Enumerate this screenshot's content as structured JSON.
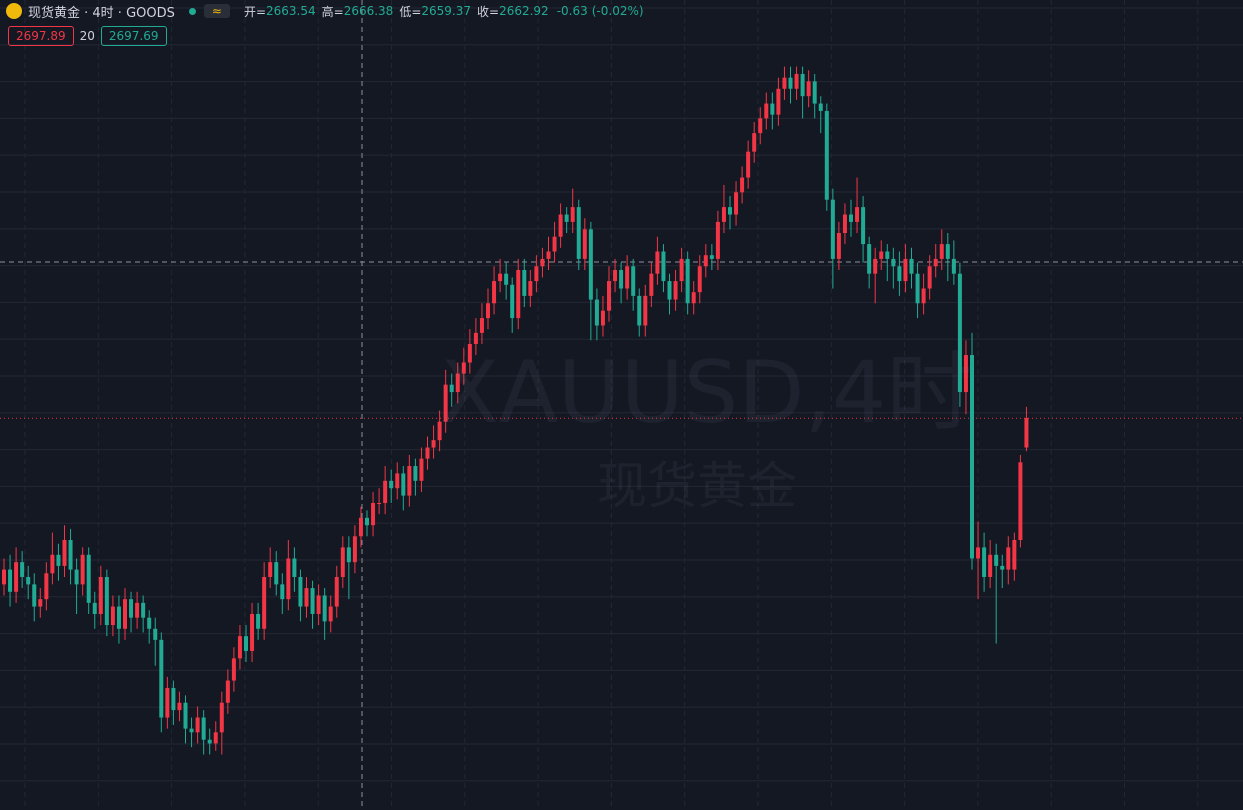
{
  "header": {
    "title": "现货黄金 · 4时 · GOODS",
    "badge": "≈",
    "ohlc_labels": {
      "open": "开=",
      "high": "高=",
      "low": "低=",
      "close": "收="
    },
    "ohlc": {
      "open": 2663.54,
      "high": 2666.38,
      "low": 2659.37,
      "close": 2662.92,
      "change": -0.63,
      "change_pct": "(-0.02%)"
    }
  },
  "quote": {
    "sell": 2697.89,
    "spread": 20,
    "buy": 2697.69
  },
  "watermark": {
    "symbol": "XAUUSD,4时",
    "name": "现货黄金"
  },
  "chart_data": {
    "type": "candlestick",
    "ylim": [
      2557,
      2776
    ],
    "up_color": "#f23645",
    "down_color": "#22ab94",
    "candles": [
      [
        2618,
        2625,
        2615,
        2622
      ],
      [
        2622,
        2626,
        2612,
        2616
      ],
      [
        2616,
        2628,
        2613,
        2624
      ],
      [
        2624,
        2627,
        2617,
        2620
      ],
      [
        2620,
        2623,
        2614,
        2618
      ],
      [
        2618,
        2621,
        2608,
        2612
      ],
      [
        2612,
        2617,
        2609,
        2614
      ],
      [
        2614,
        2624,
        2611,
        2621
      ],
      [
        2621,
        2632,
        2618,
        2626
      ],
      [
        2626,
        2629,
        2619,
        2623
      ],
      [
        2623,
        2634,
        2620,
        2630
      ],
      [
        2630,
        2633,
        2618,
        2622
      ],
      [
        2622,
        2625,
        2610,
        2618
      ],
      [
        2618,
        2628,
        2615,
        2626
      ],
      [
        2626,
        2628,
        2610,
        2613
      ],
      [
        2613,
        2616,
        2606,
        2610
      ],
      [
        2610,
        2623,
        2607,
        2620
      ],
      [
        2620,
        2622,
        2604,
        2607
      ],
      [
        2607,
        2615,
        2604,
        2612
      ],
      [
        2612,
        2615,
        2602,
        2606
      ],
      [
        2606,
        2617,
        2603,
        2614
      ],
      [
        2614,
        2616,
        2605,
        2609
      ],
      [
        2609,
        2616,
        2606,
        2613
      ],
      [
        2613,
        2615,
        2605,
        2609
      ],
      [
        2609,
        2611,
        2602,
        2606
      ],
      [
        2606,
        2609,
        2596,
        2603
      ],
      [
        2603,
        2605,
        2578,
        2582
      ],
      [
        2582,
        2593,
        2579,
        2590
      ],
      [
        2590,
        2592,
        2580,
        2584
      ],
      [
        2584,
        2589,
        2581,
        2586
      ],
      [
        2586,
        2588,
        2575,
        2579
      ],
      [
        2579,
        2582,
        2574,
        2578
      ],
      [
        2578,
        2585,
        2575,
        2582
      ],
      [
        2582,
        2584,
        2572,
        2576
      ],
      [
        2576,
        2579,
        2572,
        2575
      ],
      [
        2575,
        2581,
        2573,
        2578
      ],
      [
        2578,
        2589,
        2572,
        2586
      ],
      [
        2586,
        2595,
        2583,
        2592
      ],
      [
        2592,
        2601,
        2589,
        2598
      ],
      [
        2598,
        2607,
        2595,
        2604
      ],
      [
        2604,
        2607,
        2597,
        2600
      ],
      [
        2600,
        2613,
        2597,
        2610
      ],
      [
        2610,
        2613,
        2603,
        2606
      ],
      [
        2606,
        2624,
        2603,
        2620
      ],
      [
        2620,
        2628,
        2617,
        2624
      ],
      [
        2624,
        2627,
        2615,
        2618
      ],
      [
        2618,
        2621,
        2610,
        2614
      ],
      [
        2614,
        2630,
        2611,
        2625
      ],
      [
        2625,
        2628,
        2616,
        2620
      ],
      [
        2620,
        2622,
        2608,
        2612
      ],
      [
        2612,
        2620,
        2609,
        2617
      ],
      [
        2617,
        2619,
        2606,
        2610
      ],
      [
        2610,
        2618,
        2607,
        2615
      ],
      [
        2615,
        2617,
        2603,
        2608
      ],
      [
        2608,
        2615,
        2605,
        2612
      ],
      [
        2612,
        2623,
        2609,
        2620
      ],
      [
        2620,
        2631,
        2617,
        2628
      ],
      [
        2628,
        2631,
        2614,
        2624
      ],
      [
        2624,
        2634,
        2621,
        2631
      ],
      [
        2631,
        2639,
        2628,
        2636
      ],
      [
        2636,
        2638,
        2631,
        2634
      ],
      [
        2634,
        2643,
        2631,
        2640
      ],
      [
        2640,
        2644,
        2637,
        2640
      ],
      [
        2640,
        2650,
        2637,
        2646
      ],
      [
        2646,
        2649,
        2640,
        2644
      ],
      [
        2644,
        2651,
        2641,
        2648
      ],
      [
        2648,
        2650,
        2638,
        2642
      ],
      [
        2642,
        2653,
        2639,
        2650
      ],
      [
        2650,
        2652,
        2642,
        2646
      ],
      [
        2646,
        2655,
        2643,
        2652
      ],
      [
        2652,
        2658,
        2649,
        2655
      ],
      [
        2655,
        2661,
        2652,
        2657
      ],
      [
        2657,
        2665,
        2654,
        2662
      ],
      [
        2662,
        2676,
        2659,
        2672
      ],
      [
        2672,
        2675,
        2666,
        2670
      ],
      [
        2670,
        2678,
        2667,
        2675
      ],
      [
        2675,
        2682,
        2672,
        2678
      ],
      [
        2678,
        2687,
        2675,
        2683
      ],
      [
        2683,
        2690,
        2680,
        2686
      ],
      [
        2686,
        2694,
        2683,
        2690
      ],
      [
        2690,
        2698,
        2687,
        2694
      ],
      [
        2694,
        2704,
        2691,
        2700
      ],
      [
        2700,
        2706,
        2697,
        2702
      ],
      [
        2702,
        2705,
        2695,
        2699
      ],
      [
        2699,
        2701,
        2686,
        2690
      ],
      [
        2690,
        2706,
        2687,
        2703
      ],
      [
        2703,
        2706,
        2693,
        2696
      ],
      [
        2696,
        2703,
        2693,
        2700
      ],
      [
        2700,
        2707,
        2697,
        2704
      ],
      [
        2704,
        2709,
        2701,
        2706
      ],
      [
        2706,
        2712,
        2703,
        2708
      ],
      [
        2708,
        2716,
        2705,
        2712
      ],
      [
        2712,
        2721,
        2709,
        2718
      ],
      [
        2718,
        2720,
        2713,
        2716
      ],
      [
        2716,
        2725,
        2713,
        2720
      ],
      [
        2720,
        2722,
        2703,
        2706
      ],
      [
        2706,
        2717,
        2703,
        2714
      ],
      [
        2714,
        2716,
        2684,
        2695
      ],
      [
        2695,
        2698,
        2684,
        2688
      ],
      [
        2688,
        2696,
        2685,
        2692
      ],
      [
        2692,
        2704,
        2689,
        2700
      ],
      [
        2700,
        2706,
        2697,
        2703
      ],
      [
        2703,
        2705,
        2694,
        2698
      ],
      [
        2698,
        2707,
        2695,
        2704
      ],
      [
        2704,
        2706,
        2692,
        2696
      ],
      [
        2696,
        2698,
        2685,
        2688
      ],
      [
        2688,
        2699,
        2685,
        2696
      ],
      [
        2696,
        2705,
        2693,
        2702
      ],
      [
        2702,
        2712,
        2699,
        2708
      ],
      [
        2708,
        2710,
        2697,
        2700
      ],
      [
        2700,
        2702,
        2691,
        2695
      ],
      [
        2695,
        2703,
        2692,
        2700
      ],
      [
        2700,
        2709,
        2697,
        2706
      ],
      [
        2706,
        2708,
        2691,
        2694
      ],
      [
        2694,
        2700,
        2691,
        2697
      ],
      [
        2697,
        2707,
        2694,
        2704
      ],
      [
        2704,
        2710,
        2701,
        2707
      ],
      [
        2707,
        2710,
        2703,
        2706
      ],
      [
        2706,
        2719,
        2703,
        2716
      ],
      [
        2716,
        2726,
        2713,
        2720
      ],
      [
        2720,
        2723,
        2714,
        2718
      ],
      [
        2718,
        2727,
        2715,
        2724
      ],
      [
        2724,
        2731,
        2721,
        2728
      ],
      [
        2728,
        2738,
        2725,
        2735
      ],
      [
        2735,
        2743,
        2732,
        2740
      ],
      [
        2740,
        2747,
        2737,
        2744
      ],
      [
        2744,
        2751,
        2741,
        2748
      ],
      [
        2748,
        2751,
        2741,
        2745
      ],
      [
        2745,
        2755,
        2742,
        2752
      ],
      [
        2752,
        2758,
        2749,
        2755
      ],
      [
        2755,
        2758,
        2748,
        2752
      ],
      [
        2752,
        2758,
        2749,
        2756
      ],
      [
        2756,
        2758,
        2744,
        2750
      ],
      [
        2750,
        2757,
        2747,
        2754
      ],
      [
        2754,
        2756,
        2744,
        2748
      ],
      [
        2748,
        2750,
        2740,
        2746
      ],
      [
        2746,
        2748,
        2719,
        2722
      ],
      [
        2722,
        2725,
        2698,
        2706
      ],
      [
        2706,
        2716,
        2703,
        2713
      ],
      [
        2713,
        2721,
        2710,
        2718
      ],
      [
        2718,
        2722,
        2712,
        2716
      ],
      [
        2716,
        2728,
        2713,
        2720
      ],
      [
        2720,
        2723,
        2705,
        2710
      ],
      [
        2710,
        2712,
        2698,
        2702
      ],
      [
        2702,
        2709,
        2694,
        2706
      ],
      [
        2706,
        2711,
        2703,
        2708
      ],
      [
        2708,
        2710,
        2700,
        2706
      ],
      [
        2706,
        2709,
        2698,
        2704
      ],
      [
        2704,
        2708,
        2696,
        2700
      ],
      [
        2700,
        2710,
        2697,
        2706
      ],
      [
        2706,
        2709,
        2698,
        2702
      ],
      [
        2702,
        2705,
        2690,
        2694
      ],
      [
        2694,
        2702,
        2691,
        2698
      ],
      [
        2698,
        2707,
        2695,
        2704
      ],
      [
        2704,
        2710,
        2701,
        2706
      ],
      [
        2706,
        2714,
        2703,
        2710
      ],
      [
        2710,
        2713,
        2700,
        2706
      ],
      [
        2706,
        2711,
        2699,
        2702
      ],
      [
        2702,
        2705,
        2666,
        2670
      ],
      [
        2670,
        2684,
        2664,
        2680
      ],
      [
        2680,
        2686,
        2622,
        2625
      ],
      [
        2625,
        2635,
        2614,
        2628
      ],
      [
        2628,
        2632,
        2616,
        2620
      ],
      [
        2620,
        2630,
        2617,
        2626
      ],
      [
        2626,
        2629,
        2602,
        2623
      ],
      [
        2623,
        2626,
        2617,
        2622
      ],
      [
        2622,
        2631,
        2618,
        2628
      ],
      [
        2622,
        2632,
        2619,
        2630
      ],
      [
        2630,
        2653,
        2628,
        2651
      ],
      [
        2655,
        2666,
        2654,
        2663
      ]
    ]
  }
}
